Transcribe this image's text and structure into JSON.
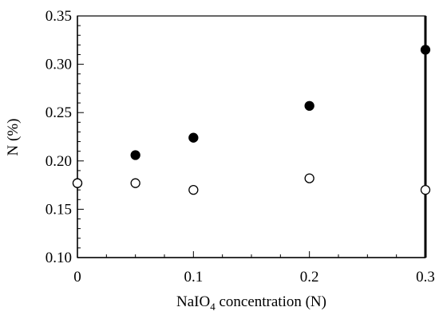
{
  "chart_data": {
    "type": "scatter",
    "title": "",
    "xlabel": "NaIO4 concentration (N)",
    "xlabel_parts": {
      "base": "NaIO",
      "subscript": "4",
      "rest": " concentration (N)"
    },
    "ylabel": "N (%)",
    "xlim": [
      0,
      0.3
    ],
    "ylim": [
      0.1,
      0.35
    ],
    "xticks": [
      0,
      0.1,
      0.2,
      0.3
    ],
    "xtick_labels": [
      "0",
      "0.1",
      "0.2",
      "0.3"
    ],
    "yticks": [
      0.1,
      0.15,
      0.2,
      0.25,
      0.3,
      0.35
    ],
    "ytick_labels": [
      "0.10",
      "0.15",
      "0.20",
      "0.25",
      "0.30",
      "0.35"
    ],
    "grid": false,
    "legend": "none",
    "series": [
      {
        "marker": "filled-circle",
        "color": "#000000",
        "x": [
          0,
          0.05,
          0.1,
          0.2,
          0.3
        ],
        "y": [
          0.177,
          0.206,
          0.224,
          0.257,
          0.315
        ]
      },
      {
        "marker": "open-circle",
        "color": "#000000",
        "x": [
          0,
          0.05,
          0.1,
          0.2,
          0.3
        ],
        "y": [
          0.177,
          0.177,
          0.17,
          0.182,
          0.17
        ]
      }
    ]
  }
}
